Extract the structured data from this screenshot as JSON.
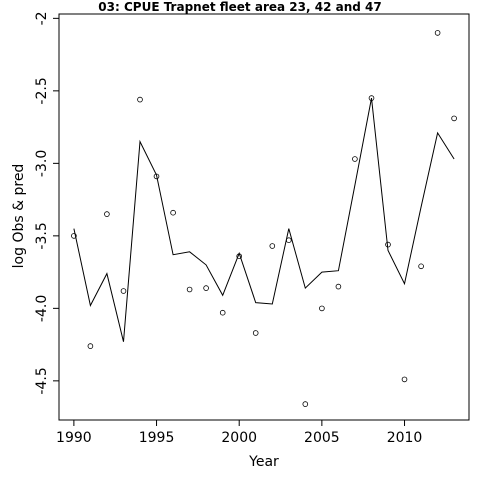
{
  "chart_data": {
    "type": "scatter",
    "title": "03: CPUE Trapnet fleet area 23, 42 and 47",
    "xlabel": "Year",
    "ylabel": "log Obs & pred",
    "xlim": [
      1989.1,
      2013.9
    ],
    "ylim": [
      -4.77,
      -1.97
    ],
    "x_ticks": [
      1990,
      1995,
      2000,
      2005,
      2010
    ],
    "y_ticks": [
      -4.5,
      -4.0,
      -3.5,
      -3.0,
      -2.5,
      -2.0
    ],
    "x_tick_labels": [
      "1990",
      "1995",
      "2000",
      "2005",
      "2010"
    ],
    "y_tick_labels": [
      "-4.5",
      "-4.0",
      "-3.5",
      "-3.0",
      "-2.5",
      "-2"
    ],
    "grid": false,
    "colors": {
      "axis": "#000000",
      "line": "#000000",
      "points": "#000000",
      "background": "#ffffff"
    },
    "series": [
      {
        "kind": "points",
        "x": [
          1990,
          1991,
          1992,
          1993,
          1994,
          1995,
          1996,
          1997,
          1998,
          1999,
          2000,
          2001,
          2002,
          2003,
          2004,
          2005,
          2006,
          2007,
          2008,
          2009,
          2010,
          2011,
          2012,
          2013
        ],
        "y": [
          -3.5,
          -4.26,
          -3.35,
          -3.88,
          -2.56,
          -3.09,
          -3.34,
          -3.87,
          -3.86,
          -4.03,
          -3.64,
          -4.17,
          -3.57,
          -3.53,
          -4.66,
          -4.0,
          -3.85,
          -2.97,
          -2.55,
          -3.56,
          -4.49,
          -3.71,
          -2.1,
          -2.69
        ]
      },
      {
        "kind": "line",
        "x": [
          1990,
          1991,
          1992,
          1993,
          1994,
          1995,
          1996,
          1997,
          1998,
          1999,
          2000,
          2001,
          2002,
          2003,
          2004,
          2005,
          2006,
          2007,
          2008,
          2009,
          2010,
          2011,
          2012,
          2013
        ],
        "y": [
          -3.45,
          -3.98,
          -3.76,
          -4.23,
          -2.85,
          -3.08,
          -3.63,
          -3.61,
          -3.7,
          -3.91,
          -3.62,
          -3.96,
          -3.97,
          -3.45,
          -3.86,
          -3.75,
          -3.74,
          -3.15,
          -2.55,
          -3.6,
          -3.83,
          -3.3,
          -2.79,
          -2.97
        ]
      }
    ]
  }
}
